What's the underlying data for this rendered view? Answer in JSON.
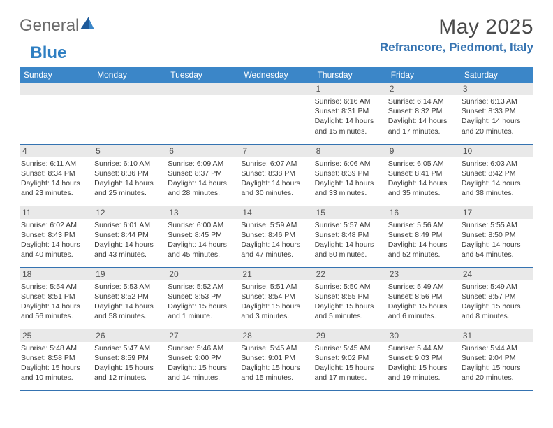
{
  "brand": {
    "part1": "General",
    "part2": "Blue"
  },
  "title": {
    "month": "May 2025",
    "location": "Refrancore, Piedmont, Italy"
  },
  "colors": {
    "header_bg": "#3b86c8",
    "header_text": "#ffffff",
    "border": "#3573b1",
    "daynum_bg": "#e9e9e9",
    "location_color": "#3573b1"
  },
  "weekdays": [
    "Sunday",
    "Monday",
    "Tuesday",
    "Wednesday",
    "Thursday",
    "Friday",
    "Saturday"
  ],
  "weeks": [
    [
      {
        "n": "",
        "sr": "",
        "ss": "",
        "dl": ""
      },
      {
        "n": "",
        "sr": "",
        "ss": "",
        "dl": ""
      },
      {
        "n": "",
        "sr": "",
        "ss": "",
        "dl": ""
      },
      {
        "n": "",
        "sr": "",
        "ss": "",
        "dl": ""
      },
      {
        "n": "1",
        "sr": "Sunrise: 6:16 AM",
        "ss": "Sunset: 8:31 PM",
        "dl": "Daylight: 14 hours and 15 minutes."
      },
      {
        "n": "2",
        "sr": "Sunrise: 6:14 AM",
        "ss": "Sunset: 8:32 PM",
        "dl": "Daylight: 14 hours and 17 minutes."
      },
      {
        "n": "3",
        "sr": "Sunrise: 6:13 AM",
        "ss": "Sunset: 8:33 PM",
        "dl": "Daylight: 14 hours and 20 minutes."
      }
    ],
    [
      {
        "n": "4",
        "sr": "Sunrise: 6:11 AM",
        "ss": "Sunset: 8:34 PM",
        "dl": "Daylight: 14 hours and 23 minutes."
      },
      {
        "n": "5",
        "sr": "Sunrise: 6:10 AM",
        "ss": "Sunset: 8:36 PM",
        "dl": "Daylight: 14 hours and 25 minutes."
      },
      {
        "n": "6",
        "sr": "Sunrise: 6:09 AM",
        "ss": "Sunset: 8:37 PM",
        "dl": "Daylight: 14 hours and 28 minutes."
      },
      {
        "n": "7",
        "sr": "Sunrise: 6:07 AM",
        "ss": "Sunset: 8:38 PM",
        "dl": "Daylight: 14 hours and 30 minutes."
      },
      {
        "n": "8",
        "sr": "Sunrise: 6:06 AM",
        "ss": "Sunset: 8:39 PM",
        "dl": "Daylight: 14 hours and 33 minutes."
      },
      {
        "n": "9",
        "sr": "Sunrise: 6:05 AM",
        "ss": "Sunset: 8:41 PM",
        "dl": "Daylight: 14 hours and 35 minutes."
      },
      {
        "n": "10",
        "sr": "Sunrise: 6:03 AM",
        "ss": "Sunset: 8:42 PM",
        "dl": "Daylight: 14 hours and 38 minutes."
      }
    ],
    [
      {
        "n": "11",
        "sr": "Sunrise: 6:02 AM",
        "ss": "Sunset: 8:43 PM",
        "dl": "Daylight: 14 hours and 40 minutes."
      },
      {
        "n": "12",
        "sr": "Sunrise: 6:01 AM",
        "ss": "Sunset: 8:44 PM",
        "dl": "Daylight: 14 hours and 43 minutes."
      },
      {
        "n": "13",
        "sr": "Sunrise: 6:00 AM",
        "ss": "Sunset: 8:45 PM",
        "dl": "Daylight: 14 hours and 45 minutes."
      },
      {
        "n": "14",
        "sr": "Sunrise: 5:59 AM",
        "ss": "Sunset: 8:46 PM",
        "dl": "Daylight: 14 hours and 47 minutes."
      },
      {
        "n": "15",
        "sr": "Sunrise: 5:57 AM",
        "ss": "Sunset: 8:48 PM",
        "dl": "Daylight: 14 hours and 50 minutes."
      },
      {
        "n": "16",
        "sr": "Sunrise: 5:56 AM",
        "ss": "Sunset: 8:49 PM",
        "dl": "Daylight: 14 hours and 52 minutes."
      },
      {
        "n": "17",
        "sr": "Sunrise: 5:55 AM",
        "ss": "Sunset: 8:50 PM",
        "dl": "Daylight: 14 hours and 54 minutes."
      }
    ],
    [
      {
        "n": "18",
        "sr": "Sunrise: 5:54 AM",
        "ss": "Sunset: 8:51 PM",
        "dl": "Daylight: 14 hours and 56 minutes."
      },
      {
        "n": "19",
        "sr": "Sunrise: 5:53 AM",
        "ss": "Sunset: 8:52 PM",
        "dl": "Daylight: 14 hours and 58 minutes."
      },
      {
        "n": "20",
        "sr": "Sunrise: 5:52 AM",
        "ss": "Sunset: 8:53 PM",
        "dl": "Daylight: 15 hours and 1 minute."
      },
      {
        "n": "21",
        "sr": "Sunrise: 5:51 AM",
        "ss": "Sunset: 8:54 PM",
        "dl": "Daylight: 15 hours and 3 minutes."
      },
      {
        "n": "22",
        "sr": "Sunrise: 5:50 AM",
        "ss": "Sunset: 8:55 PM",
        "dl": "Daylight: 15 hours and 5 minutes."
      },
      {
        "n": "23",
        "sr": "Sunrise: 5:49 AM",
        "ss": "Sunset: 8:56 PM",
        "dl": "Daylight: 15 hours and 6 minutes."
      },
      {
        "n": "24",
        "sr": "Sunrise: 5:49 AM",
        "ss": "Sunset: 8:57 PM",
        "dl": "Daylight: 15 hours and 8 minutes."
      }
    ],
    [
      {
        "n": "25",
        "sr": "Sunrise: 5:48 AM",
        "ss": "Sunset: 8:58 PM",
        "dl": "Daylight: 15 hours and 10 minutes."
      },
      {
        "n": "26",
        "sr": "Sunrise: 5:47 AM",
        "ss": "Sunset: 8:59 PM",
        "dl": "Daylight: 15 hours and 12 minutes."
      },
      {
        "n": "27",
        "sr": "Sunrise: 5:46 AM",
        "ss": "Sunset: 9:00 PM",
        "dl": "Daylight: 15 hours and 14 minutes."
      },
      {
        "n": "28",
        "sr": "Sunrise: 5:45 AM",
        "ss": "Sunset: 9:01 PM",
        "dl": "Daylight: 15 hours and 15 minutes."
      },
      {
        "n": "29",
        "sr": "Sunrise: 5:45 AM",
        "ss": "Sunset: 9:02 PM",
        "dl": "Daylight: 15 hours and 17 minutes."
      },
      {
        "n": "30",
        "sr": "Sunrise: 5:44 AM",
        "ss": "Sunset: 9:03 PM",
        "dl": "Daylight: 15 hours and 19 minutes."
      },
      {
        "n": "31",
        "sr": "Sunrise: 5:44 AM",
        "ss": "Sunset: 9:04 PM",
        "dl": "Daylight: 15 hours and 20 minutes."
      }
    ]
  ]
}
